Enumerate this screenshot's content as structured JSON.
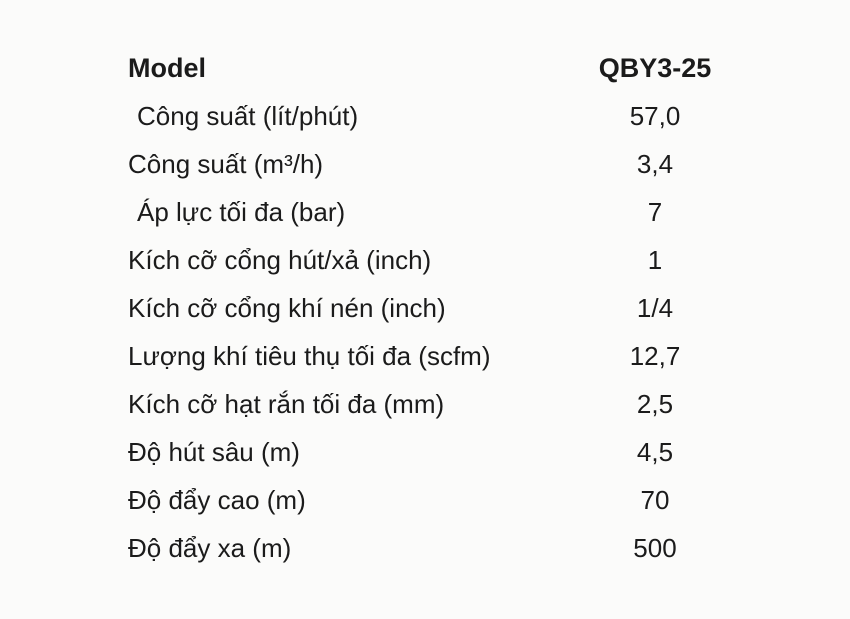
{
  "table": {
    "header": {
      "label": "Model",
      "value": "QBY3-25"
    },
    "rows": [
      {
        "label": "Công suất (lít/phút)",
        "value": "57,0"
      },
      {
        "label": "Công suất (m³/h)",
        "value": "3,4"
      },
      {
        "label": "Áp lực tối đa (bar)",
        "value": "7"
      },
      {
        "label": "Kích cỡ cổng  hút/xả (inch)",
        "value": "1"
      },
      {
        "label": "Kích cỡ cổng khí nén (inch)",
        "value": "1/4"
      },
      {
        "label": "Lượng khí tiêu thụ tối đa (scfm)",
        "value": "12,7"
      },
      {
        "label": "Kích cỡ hạt rắn tối đa (mm)",
        "value": "2,5"
      },
      {
        "label": "Độ hút sâu (m)",
        "value": "4,5"
      },
      {
        "label": "Độ đẩy cao (m)",
        "value": "70"
      },
      {
        "label": "Độ đẩy xa (m)",
        "value": "500"
      }
    ],
    "colors": {
      "background": "#fbfbfa",
      "text": "#1b1b1b"
    }
  }
}
